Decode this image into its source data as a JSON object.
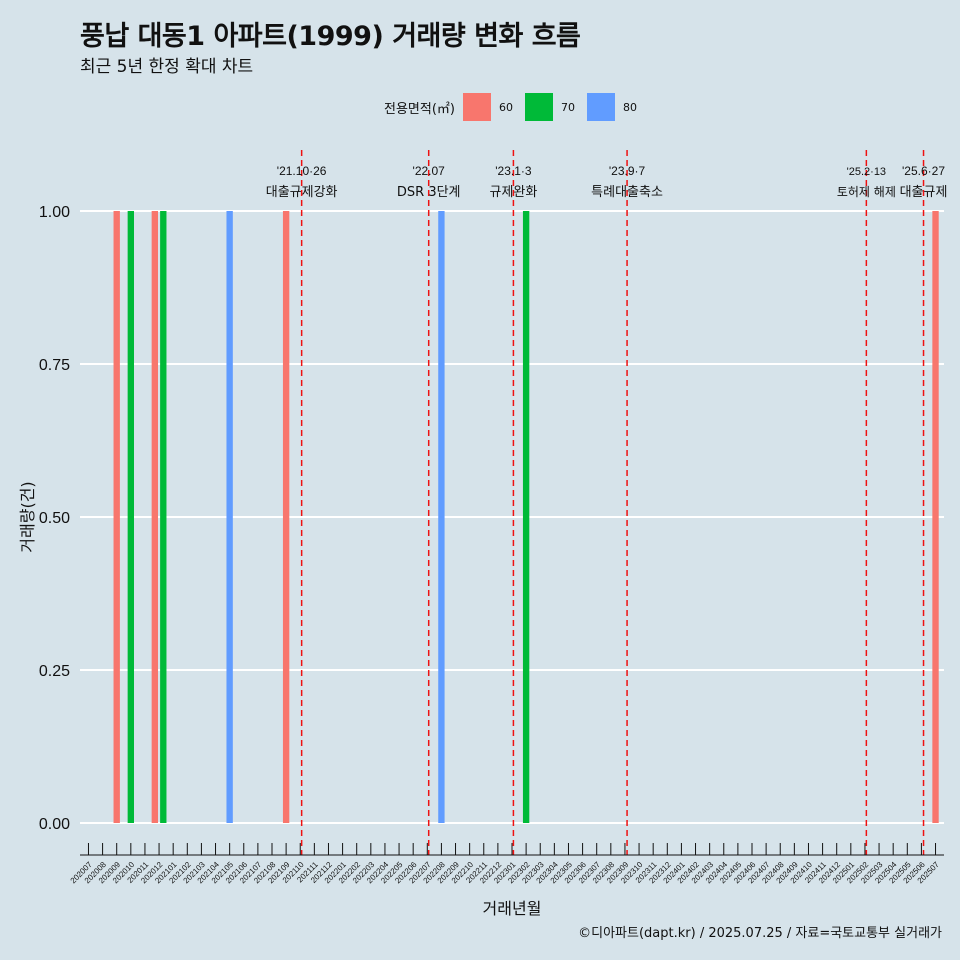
{
  "title": "풍납 대동1 아파트(1999) 거래량 변화 흐름",
  "subtitle": "최근 5년 한정 확대 차트",
  "legend": {
    "title": "전용면적(㎡)",
    "items": [
      {
        "label": "60",
        "color": "#f8766d"
      },
      {
        "label": "70",
        "color": "#00ba38"
      },
      {
        "label": "80",
        "color": "#619cff"
      }
    ]
  },
  "caption": "©디아파트(dapt.kr) / 2025.07.25 / 자료=국토교통부 실거래가",
  "chart_data": {
    "type": "bar",
    "xlabel": "거래년월",
    "ylabel": "거래량(건)",
    "ylim": [
      0,
      1
    ],
    "yticks": [
      "0.00",
      "0.25",
      "0.50",
      "0.75",
      "1.00"
    ],
    "categories": [
      "202007",
      "202008",
      "202009",
      "202010",
      "202011",
      "202012",
      "202101",
      "202102",
      "202103",
      "202104",
      "202105",
      "202106",
      "202107",
      "202108",
      "202109",
      "202110",
      "202111",
      "202112",
      "202201",
      "202202",
      "202203",
      "202204",
      "202205",
      "202206",
      "202207",
      "202208",
      "202209",
      "202210",
      "202211",
      "202212",
      "202301",
      "202302",
      "202303",
      "202304",
      "202305",
      "202306",
      "202307",
      "202308",
      "202309",
      "202310",
      "202311",
      "202312",
      "202401",
      "202402",
      "202403",
      "202404",
      "202405",
      "202406",
      "202407",
      "202408",
      "202409",
      "202410",
      "202411",
      "202412",
      "202501",
      "202502",
      "202503",
      "202504",
      "202505",
      "202506",
      "202507"
    ],
    "series": [
      {
        "name": "60",
        "color": "#f8766d",
        "points": [
          {
            "x": "202009",
            "y": 1,
            "offset": 0
          },
          {
            "x": "202012",
            "y": 1,
            "offset": -0.2
          },
          {
            "x": "202109",
            "y": 1,
            "offset": 0
          },
          {
            "x": "202507",
            "y": 1,
            "offset": 0
          }
        ]
      },
      {
        "name": "70",
        "color": "#00ba38",
        "points": [
          {
            "x": "202010",
            "y": 1,
            "offset": 0
          },
          {
            "x": "202012",
            "y": 1,
            "offset": 0.2
          },
          {
            "x": "202302",
            "y": 1,
            "offset": 0
          }
        ]
      },
      {
        "name": "80",
        "color": "#619cff",
        "points": [
          {
            "x": "202105",
            "y": 1,
            "offset": 0
          },
          {
            "x": "202208",
            "y": 1,
            "offset": 0
          }
        ]
      }
    ],
    "events": [
      {
        "x": 15.1,
        "date": "'21.10·26",
        "text": "대출규제강화"
      },
      {
        "x": 24.1,
        "date": "'22.07",
        "text": "DSR 3단계"
      },
      {
        "x": 30.1,
        "date": "'23.1·3",
        "text": "규제완화"
      },
      {
        "x": 38.15,
        "date": "'23.9·7",
        "text": "특례대출축소"
      },
      {
        "x": 55.1,
        "date": "'25.2·13",
        "text": "토허제 해제"
      },
      {
        "x": 59.15,
        "date": "'25.6·27",
        "text": "대출규제"
      }
    ]
  }
}
